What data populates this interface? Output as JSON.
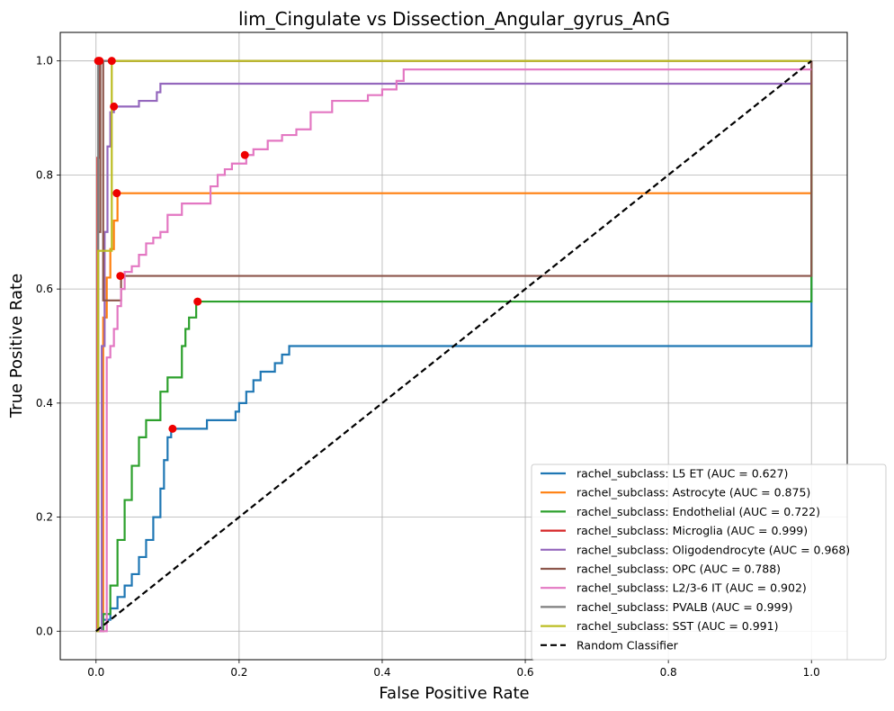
{
  "chart_data": {
    "type": "line",
    "title": "lim_Cingulate vs Dissection_Angular_gyrus_AnG",
    "xlabel": "False Positive Rate",
    "ylabel": "True Positive Rate",
    "xlim": [
      -0.05,
      1.05
    ],
    "ylim": [
      -0.05,
      1.05
    ],
    "xticks": [
      "0.0",
      "0.2",
      "0.4",
      "0.6",
      "0.8",
      "1.0"
    ],
    "yticks": [
      "0.0",
      "0.2",
      "0.4",
      "0.6",
      "0.8",
      "1.0"
    ],
    "grid": true,
    "legend_position": "lower-right",
    "series": [
      {
        "name": "rachel_subclass: L5 ET (AUC = 0.627)",
        "color": "#1f77b4",
        "x": [
          0,
          0.01,
          0.01,
          0.02,
          0.02,
          0.03,
          0.03,
          0.04,
          0.04,
          0.05,
          0.05,
          0.06,
          0.06,
          0.07,
          0.07,
          0.08,
          0.08,
          0.09,
          0.09,
          0.095,
          0.095,
          0.1,
          0.1,
          0.105,
          0.105,
          0.155,
          0.155,
          0.195,
          0.195,
          0.2,
          0.2,
          0.21,
          0.21,
          0.22,
          0.22,
          0.23,
          0.23,
          0.25,
          0.25,
          0.26,
          0.26,
          0.27,
          0.27,
          1.0,
          1.0
        ],
        "y": [
          0,
          0,
          0.02,
          0.02,
          0.04,
          0.04,
          0.06,
          0.06,
          0.08,
          0.08,
          0.1,
          0.1,
          0.13,
          0.13,
          0.16,
          0.16,
          0.2,
          0.2,
          0.25,
          0.25,
          0.3,
          0.3,
          0.34,
          0.34,
          0.355,
          0.355,
          0.37,
          0.37,
          0.385,
          0.385,
          0.4,
          0.4,
          0.42,
          0.42,
          0.44,
          0.44,
          0.455,
          0.455,
          0.47,
          0.47,
          0.485,
          0.485,
          0.5,
          0.5,
          1.0
        ],
        "optimal_point": [
          0.107,
          0.355
        ]
      },
      {
        "name": "rachel_subclass: Astrocyte (AUC = 0.875)",
        "color": "#ff7f0e",
        "x": [
          0,
          0.01,
          0.01,
          0.015,
          0.015,
          0.02,
          0.02,
          0.025,
          0.025,
          0.03,
          0.03,
          1.0,
          1.0
        ],
        "y": [
          0,
          0,
          0.55,
          0.55,
          0.62,
          0.62,
          0.67,
          0.67,
          0.72,
          0.72,
          0.768,
          0.768,
          1.0
        ],
        "optimal_point": [
          0.029,
          0.768
        ]
      },
      {
        "name": "rachel_subclass: Endothelial (AUC = 0.722)",
        "color": "#2ca02c",
        "x": [
          0,
          0.01,
          0.01,
          0.02,
          0.02,
          0.03,
          0.03,
          0.04,
          0.04,
          0.05,
          0.05,
          0.06,
          0.06,
          0.07,
          0.07,
          0.09,
          0.09,
          0.1,
          0.1,
          0.12,
          0.12,
          0.125,
          0.125,
          0.13,
          0.13,
          0.14,
          0.14,
          1.0,
          1.0
        ],
        "y": [
          0,
          0,
          0.03,
          0.03,
          0.08,
          0.08,
          0.16,
          0.16,
          0.23,
          0.23,
          0.29,
          0.29,
          0.34,
          0.34,
          0.37,
          0.37,
          0.42,
          0.42,
          0.445,
          0.445,
          0.5,
          0.5,
          0.53,
          0.53,
          0.55,
          0.55,
          0.578,
          0.578,
          1.0
        ],
        "optimal_point": [
          0.142,
          0.578
        ]
      },
      {
        "name": "rachel_subclass: Microglia (AUC = 0.999)",
        "color": "#d62728",
        "x": [
          0,
          0.002,
          0.002,
          0.004,
          0.004,
          1.0
        ],
        "y": [
          0,
          0,
          0.83,
          0.83,
          1.0,
          1.0
        ],
        "optimal_point": [
          0.005,
          1.0
        ]
      },
      {
        "name": "rachel_subclass: Oligodendrocyte (AUC = 0.968)",
        "color": "#9467bd",
        "x": [
          0,
          0.008,
          0.008,
          0.012,
          0.012,
          0.016,
          0.016,
          0.02,
          0.02,
          0.025,
          0.025,
          0.06,
          0.06,
          0.085,
          0.085,
          0.09,
          0.09,
          1.0,
          1.0
        ],
        "y": [
          0,
          0,
          0.5,
          0.5,
          0.7,
          0.7,
          0.85,
          0.85,
          0.91,
          0.91,
          0.92,
          0.92,
          0.93,
          0.93,
          0.945,
          0.945,
          0.96,
          0.96,
          1.0
        ],
        "optimal_point": [
          0.025,
          0.92
        ]
      },
      {
        "name": "rachel_subclass: OPC (AUC = 0.788)",
        "color": "#8c564b",
        "x": [
          0,
          0.003,
          0.003,
          0.006,
          0.006,
          0.01,
          0.01,
          0.035,
          0.035,
          1.0,
          1.0
        ],
        "y": [
          0,
          0,
          0.7,
          0.7,
          1.0,
          1.0,
          0.58,
          0.58,
          0.623,
          0.623,
          1.0
        ],
        "optimal_point": [
          0.034,
          0.623
        ]
      },
      {
        "name": "rachel_subclass: L2/3-6 IT (AUC = 0.902)",
        "color": "#e377c2",
        "x": [
          0,
          0.015,
          0.015,
          0.02,
          0.02,
          0.025,
          0.025,
          0.03,
          0.03,
          0.035,
          0.035,
          0.04,
          0.04,
          0.05,
          0.05,
          0.06,
          0.06,
          0.07,
          0.07,
          0.08,
          0.08,
          0.09,
          0.09,
          0.1,
          0.1,
          0.12,
          0.12,
          0.16,
          0.16,
          0.17,
          0.17,
          0.18,
          0.18,
          0.19,
          0.19,
          0.21,
          0.21,
          0.22,
          0.22,
          0.24,
          0.24,
          0.26,
          0.26,
          0.28,
          0.28,
          0.3,
          0.3,
          0.33,
          0.33,
          0.38,
          0.38,
          0.4,
          0.4,
          0.42,
          0.42,
          0.43,
          0.43,
          1.0,
          1.0
        ],
        "y": [
          0,
          0,
          0.48,
          0.48,
          0.5,
          0.5,
          0.53,
          0.53,
          0.57,
          0.57,
          0.6,
          0.6,
          0.63,
          0.63,
          0.64,
          0.64,
          0.66,
          0.66,
          0.68,
          0.68,
          0.69,
          0.69,
          0.7,
          0.7,
          0.73,
          0.73,
          0.75,
          0.75,
          0.78,
          0.78,
          0.8,
          0.8,
          0.81,
          0.81,
          0.82,
          0.82,
          0.835,
          0.835,
          0.845,
          0.845,
          0.86,
          0.86,
          0.87,
          0.87,
          0.88,
          0.88,
          0.91,
          0.91,
          0.93,
          0.93,
          0.94,
          0.94,
          0.95,
          0.95,
          0.965,
          0.965,
          0.985,
          0.985,
          0.985
        ],
        "optimal_point": [
          0.208,
          0.835
        ]
      },
      {
        "name": "rachel_subclass: PVALB (AUC = 0.999)",
        "color": "#7f7f7f",
        "x": [
          0,
          0.003,
          0.003,
          1.0
        ],
        "y": [
          0,
          0,
          1.0,
          1.0
        ],
        "optimal_point": [
          0.003,
          1.0
        ]
      },
      {
        "name": "rachel_subclass: SST (AUC = 0.991)",
        "color": "#bcbd22",
        "x": [
          0,
          0.003,
          0.003,
          0.005,
          0.005,
          0.022,
          0.022,
          1.0
        ],
        "y": [
          0,
          0,
          0.667,
          0.667,
          0.667,
          0.667,
          1.0,
          1.0
        ],
        "optimal_point": [
          0.022,
          1.0
        ]
      },
      {
        "name": "Random Classifier",
        "color": "#000000",
        "dashed": true,
        "x": [
          0,
          1
        ],
        "y": [
          0,
          1
        ]
      }
    ]
  }
}
